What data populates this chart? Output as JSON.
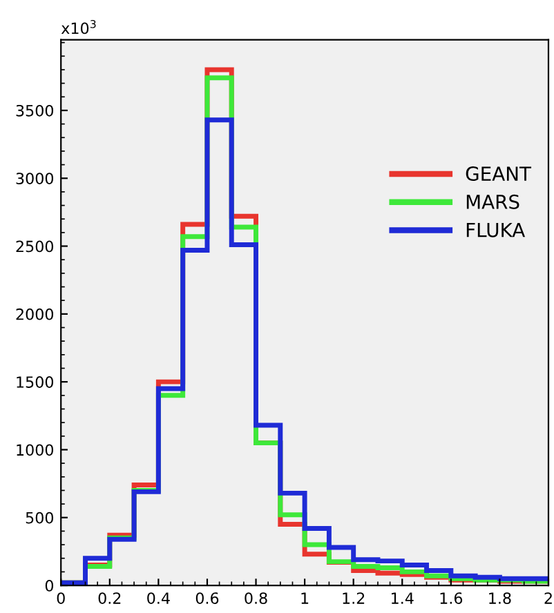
{
  "chart_data": {
    "type": "histogram",
    "annotations": [
      "x10$^{3}$"
    ],
    "bins": [
      0,
      0.1,
      0.2,
      0.3,
      0.4,
      0.5,
      0.6,
      0.7,
      0.8,
      0.9,
      1.0,
      1.1,
      1.2,
      1.3,
      1.4,
      1.5,
      1.6,
      1.7,
      1.8,
      1.9,
      2.0
    ],
    "series": [
      {
        "name": "GEANT",
        "color": "#e8352e",
        "values": [
          20,
          150,
          370,
          740,
          1500,
          2660,
          3800,
          2720,
          1050,
          450,
          230,
          170,
          110,
          90,
          80,
          60,
          40,
          40,
          30,
          30
        ]
      },
      {
        "name": "MARS",
        "color": "#3ee83a",
        "values": [
          20,
          140,
          350,
          700,
          1400,
          2570,
          3740,
          2640,
          1050,
          520,
          300,
          175,
          140,
          130,
          100,
          70,
          50,
          40,
          40,
          30
        ]
      },
      {
        "name": "FLUKA",
        "color": "#1f2bd6",
        "values": [
          20,
          200,
          340,
          690,
          1450,
          2470,
          3430,
          2510,
          1180,
          680,
          420,
          280,
          190,
          180,
          150,
          110,
          70,
          60,
          50,
          50
        ]
      }
    ],
    "xlim": [
      0,
      2
    ],
    "ylim": [
      0,
      4020
    ],
    "xticks": [
      0,
      0.2,
      0.4,
      0.6,
      0.8,
      1,
      1.2,
      1.4,
      1.6,
      1.8,
      2
    ],
    "yticks": [
      0,
      500,
      1000,
      1500,
      2000,
      2500,
      3000,
      3500
    ],
    "legend": "right",
    "grid": false
  }
}
